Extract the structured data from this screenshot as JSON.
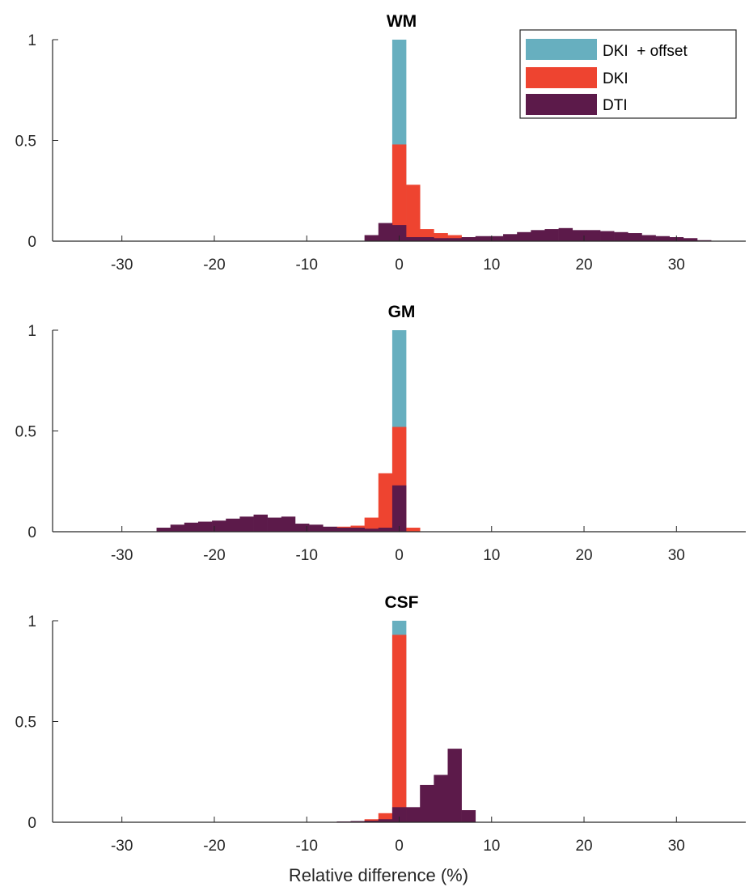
{
  "chart_data": [
    {
      "type": "bar",
      "title": "WM",
      "xlabel": "",
      "ylabel": "",
      "xlim": [
        -37.5,
        37.5
      ],
      "ylim": [
        0,
        1
      ],
      "xticks": [
        -30,
        -20,
        -10,
        0,
        10,
        20,
        30
      ],
      "xtick_labels": [
        "-30",
        "-20",
        "-10",
        "0",
        "10",
        "20",
        "30"
      ],
      "yticks": [
        0,
        0.5,
        1
      ],
      "ytick_labels": [
        "0",
        "0.5",
        "1"
      ],
      "bin_width": 1.5,
      "legend": {
        "position": "top-right"
      },
      "series": [
        {
          "name": "DKI  + offset",
          "color": "#67AFBF",
          "bins": [
            [
              0,
              1.0
            ]
          ]
        },
        {
          "name": "DKI",
          "color": "#EE4430",
          "bins": [
            [
              0,
              0.48
            ],
            [
              1.5,
              0.28
            ],
            [
              3,
              0.06
            ],
            [
              4.5,
              0.04
            ],
            [
              6,
              0.03
            ],
            [
              7.5,
              0.02
            ]
          ]
        },
        {
          "name": "DTI",
          "color": "#5C1A4A",
          "bins": [
            [
              -3,
              0.03
            ],
            [
              -1.5,
              0.09
            ],
            [
              0,
              0.08
            ],
            [
              1.5,
              0.02
            ],
            [
              3,
              0.02
            ],
            [
              4.5,
              0.015
            ],
            [
              6,
              0.015
            ],
            [
              7.5,
              0.02
            ],
            [
              9,
              0.025
            ],
            [
              10.5,
              0.025
            ],
            [
              12,
              0.035
            ],
            [
              13.5,
              0.045
            ],
            [
              15,
              0.055
            ],
            [
              16.5,
              0.06
            ],
            [
              18,
              0.065
            ],
            [
              19.5,
              0.055
            ],
            [
              21,
              0.055
            ],
            [
              22.5,
              0.05
            ],
            [
              24,
              0.045
            ],
            [
              25.5,
              0.04
            ],
            [
              27,
              0.03
            ],
            [
              28.5,
              0.025
            ],
            [
              30,
              0.02
            ],
            [
              31.5,
              0.015
            ],
            [
              33,
              0.005
            ]
          ]
        }
      ]
    },
    {
      "type": "bar",
      "title": "GM",
      "xlabel": "",
      "ylabel": "",
      "xlim": [
        -37.5,
        37.5
      ],
      "ylim": [
        0,
        1
      ],
      "xticks": [
        -30,
        -20,
        -10,
        0,
        10,
        20,
        30
      ],
      "xtick_labels": [
        "-30",
        "-20",
        "-10",
        "0",
        "10",
        "20",
        "30"
      ],
      "yticks": [
        0,
        0.5,
        1
      ],
      "ytick_labels": [
        "0",
        "0.5",
        "1"
      ],
      "bin_width": 1.5,
      "series": [
        {
          "name": "DKI  + offset",
          "color": "#67AFBF",
          "bins": [
            [
              0,
              1.0
            ]
          ]
        },
        {
          "name": "DKI",
          "color": "#EE4430",
          "bins": [
            [
              -6,
              0.025
            ],
            [
              -4.5,
              0.03
            ],
            [
              -3,
              0.07
            ],
            [
              -1.5,
              0.29
            ],
            [
              0,
              0.52
            ],
            [
              1.5,
              0.02
            ]
          ]
        },
        {
          "name": "DTI",
          "color": "#5C1A4A",
          "bins": [
            [
              -25.5,
              0.02
            ],
            [
              -24,
              0.035
            ],
            [
              -22.5,
              0.045
            ],
            [
              -21,
              0.05
            ],
            [
              -19.5,
              0.055
            ],
            [
              -18,
              0.065
            ],
            [
              -16.5,
              0.075
            ],
            [
              -15,
              0.085
            ],
            [
              -13.5,
              0.07
            ],
            [
              -12,
              0.075
            ],
            [
              -10.5,
              0.04
            ],
            [
              -9,
              0.035
            ],
            [
              -7.5,
              0.025
            ],
            [
              -6,
              0.02
            ],
            [
              -4.5,
              0.02
            ],
            [
              -3,
              0.015
            ],
            [
              -1.5,
              0.02
            ],
            [
              0,
              0.23
            ]
          ]
        }
      ]
    },
    {
      "type": "bar",
      "title": "CSF",
      "xlabel": "Relative difference (%)",
      "ylabel": "",
      "xlim": [
        -37.5,
        37.5
      ],
      "ylim": [
        0,
        1
      ],
      "xticks": [
        -30,
        -20,
        -10,
        0,
        10,
        20,
        30
      ],
      "xtick_labels": [
        "-30",
        "-20",
        "-10",
        "0",
        "10",
        "20",
        "30"
      ],
      "yticks": [
        0,
        0.5,
        1
      ],
      "ytick_labels": [
        "0",
        "0.5",
        "1"
      ],
      "bin_width": 1.5,
      "series": [
        {
          "name": "DKI  + offset",
          "color": "#67AFBF",
          "bins": [
            [
              0,
              1.0
            ]
          ]
        },
        {
          "name": "DKI",
          "color": "#EE4430",
          "bins": [
            [
              -3,
              0.015
            ],
            [
              -1.5,
              0.045
            ],
            [
              0,
              0.93
            ]
          ]
        },
        {
          "name": "DTI",
          "color": "#5C1A4A",
          "bins": [
            [
              -6,
              0.004
            ],
            [
              -4.5,
              0.006
            ],
            [
              -3,
              0.008
            ],
            [
              -1.5,
              0.015
            ],
            [
              0,
              0.075
            ],
            [
              1.5,
              0.075
            ],
            [
              3,
              0.185
            ],
            [
              4.5,
              0.235
            ],
            [
              6,
              0.365
            ],
            [
              7.5,
              0.06
            ]
          ]
        }
      ]
    }
  ]
}
